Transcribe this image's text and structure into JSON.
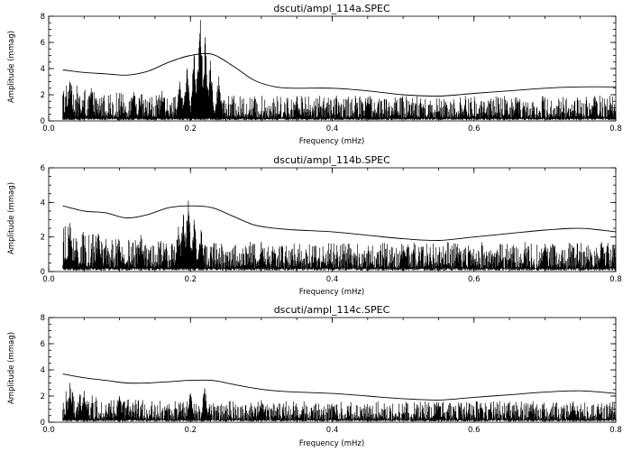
{
  "chart_data": [
    {
      "type": "line",
      "title": "dscuti/ampl_114a.SPEC",
      "xlabel": "Frequency (mHz)",
      "ylabel": "Amplitude (mmag)",
      "xlim": [
        0.0,
        0.8
      ],
      "ylim": [
        0,
        8
      ],
      "xticks": [
        "0.0",
        "0.2",
        "0.4",
        "0.6",
        "0.8"
      ],
      "yticks": [
        "0",
        "2",
        "4",
        "6",
        "8"
      ],
      "grid": false,
      "series": [
        {
          "kind": "amplitude-spectrum",
          "x_range": [
            0.02,
            0.8
          ],
          "noise_level": 0.9,
          "peaks": [
            {
              "x": 0.214,
              "y": 7.7
            },
            {
              "x": 0.221,
              "y": 6.4
            },
            {
              "x": 0.205,
              "y": 5.1
            },
            {
              "x": 0.228,
              "y": 4.6
            },
            {
              "x": 0.195,
              "y": 4.0
            },
            {
              "x": 0.21,
              "y": 3.7
            },
            {
              "x": 0.24,
              "y": 3.4
            },
            {
              "x": 0.185,
              "y": 3.0
            },
            {
              "x": 0.03,
              "y": 3.0
            },
            {
              "x": 0.06,
              "y": 2.5
            },
            {
              "x": 0.12,
              "y": 2.2
            },
            {
              "x": 0.16,
              "y": 2.3
            },
            {
              "x": 0.35,
              "y": 1.9
            },
            {
              "x": 0.45,
              "y": 1.7
            },
            {
              "x": 0.66,
              "y": 1.8
            },
            {
              "x": 0.77,
              "y": 1.9
            }
          ]
        },
        {
          "kind": "significance-threshold",
          "x": [
            0.02,
            0.05,
            0.08,
            0.11,
            0.14,
            0.17,
            0.2,
            0.23,
            0.26,
            0.29,
            0.32,
            0.35,
            0.4,
            0.45,
            0.5,
            0.55,
            0.6,
            0.65,
            0.7,
            0.75,
            0.8
          ],
          "y": [
            3.9,
            3.7,
            3.6,
            3.5,
            3.8,
            4.5,
            5.0,
            5.1,
            4.2,
            3.1,
            2.6,
            2.5,
            2.5,
            2.3,
            2.0,
            1.9,
            2.1,
            2.3,
            2.5,
            2.6,
            2.6
          ]
        }
      ]
    },
    {
      "type": "line",
      "title": "dscuti/ampl_114b.SPEC",
      "xlabel": "Frequency (mHz)",
      "ylabel": "Amplitude (mmag)",
      "xlim": [
        0.0,
        0.8
      ],
      "ylim": [
        0,
        6
      ],
      "xticks": [
        "0.0",
        "0.2",
        "0.4",
        "0.6",
        "0.8"
      ],
      "yticks": [
        "0",
        "2",
        "4",
        "6"
      ],
      "grid": false,
      "series": [
        {
          "kind": "amplitude-spectrum",
          "x_range": [
            0.02,
            0.8
          ],
          "noise_level": 0.8,
          "peaks": [
            {
              "x": 0.197,
              "y": 4.1
            },
            {
              "x": 0.19,
              "y": 3.3
            },
            {
              "x": 0.205,
              "y": 3.0
            },
            {
              "x": 0.183,
              "y": 2.6
            },
            {
              "x": 0.215,
              "y": 2.4
            },
            {
              "x": 0.03,
              "y": 2.8
            },
            {
              "x": 0.07,
              "y": 2.2
            },
            {
              "x": 0.13,
              "y": 2.1
            },
            {
              "x": 0.3,
              "y": 1.7
            },
            {
              "x": 0.5,
              "y": 1.5
            },
            {
              "x": 0.7,
              "y": 1.6
            },
            {
              "x": 0.78,
              "y": 1.7
            }
          ]
        },
        {
          "kind": "significance-threshold",
          "x": [
            0.02,
            0.05,
            0.08,
            0.11,
            0.14,
            0.17,
            0.2,
            0.23,
            0.26,
            0.29,
            0.32,
            0.35,
            0.4,
            0.45,
            0.5,
            0.55,
            0.6,
            0.65,
            0.7,
            0.75,
            0.8
          ],
          "y": [
            3.8,
            3.5,
            3.4,
            3.1,
            3.3,
            3.7,
            3.8,
            3.7,
            3.2,
            2.7,
            2.5,
            2.4,
            2.3,
            2.1,
            1.9,
            1.8,
            2.0,
            2.2,
            2.4,
            2.5,
            2.3
          ]
        }
      ]
    },
    {
      "type": "line",
      "title": "dscuti/ampl_114c.SPEC",
      "xlabel": "Frequency (mHz)",
      "ylabel": "Amplitude (mmag)",
      "xlim": [
        0.0,
        0.8
      ],
      "ylim": [
        0,
        8
      ],
      "xticks": [
        "0.0",
        "0.2",
        "0.4",
        "0.6",
        "0.8"
      ],
      "yticks": [
        "0",
        "2",
        "4",
        "6",
        "8"
      ],
      "grid": false,
      "series": [
        {
          "kind": "amplitude-spectrum",
          "x_range": [
            0.02,
            0.8
          ],
          "noise_level": 0.75,
          "peaks": [
            {
              "x": 0.22,
              "y": 2.6
            },
            {
              "x": 0.2,
              "y": 2.2
            },
            {
              "x": 0.03,
              "y": 3.0
            },
            {
              "x": 0.05,
              "y": 2.4
            },
            {
              "x": 0.1,
              "y": 2.0
            },
            {
              "x": 0.3,
              "y": 1.7
            },
            {
              "x": 0.55,
              "y": 1.5
            },
            {
              "x": 0.74,
              "y": 1.6
            }
          ]
        },
        {
          "kind": "significance-threshold",
          "x": [
            0.02,
            0.05,
            0.08,
            0.11,
            0.14,
            0.17,
            0.2,
            0.23,
            0.26,
            0.29,
            0.32,
            0.35,
            0.4,
            0.45,
            0.5,
            0.55,
            0.6,
            0.65,
            0.7,
            0.75,
            0.8
          ],
          "y": [
            3.7,
            3.4,
            3.2,
            3.0,
            3.0,
            3.1,
            3.2,
            3.2,
            2.9,
            2.6,
            2.4,
            2.3,
            2.2,
            2.0,
            1.8,
            1.7,
            1.9,
            2.1,
            2.3,
            2.4,
            2.2
          ]
        }
      ]
    }
  ]
}
